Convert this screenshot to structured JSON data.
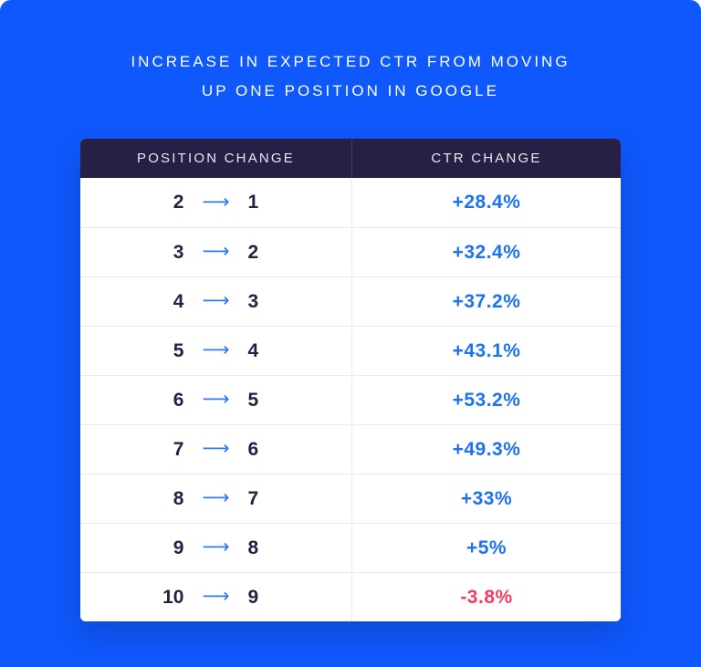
{
  "title": {
    "line1": "INCREASE IN EXPECTED CTR FROM MOVING",
    "line2": "UP ONE POSITION IN GOOGLE"
  },
  "table": {
    "columns": [
      "POSITION CHANGE",
      "CTR CHANGE"
    ],
    "arrow_icon": "⟶",
    "rows": [
      {
        "from": "2",
        "to": "1",
        "ctr": "+28.4%",
        "positive": true
      },
      {
        "from": "3",
        "to": "2",
        "ctr": "+32.4%",
        "positive": true
      },
      {
        "from": "4",
        "to": "3",
        "ctr": "+37.2%",
        "positive": true
      },
      {
        "from": "5",
        "to": "4",
        "ctr": "+43.1%",
        "positive": true
      },
      {
        "from": "6",
        "to": "5",
        "ctr": "+53.2%",
        "positive": true
      },
      {
        "from": "7",
        "to": "6",
        "ctr": "+49.3%",
        "positive": true
      },
      {
        "from": "8",
        "to": "7",
        "ctr": "+33%",
        "positive": true
      },
      {
        "from": "9",
        "to": "8",
        "ctr": "+5%",
        "positive": true
      },
      {
        "from": "10",
        "to": "9",
        "ctr": "-3.8%",
        "positive": false
      }
    ]
  },
  "colors": {
    "background_blue": "#0F58FB",
    "header_background": "#262044",
    "positive_value": "#1C72F1",
    "negative_value": "#F93A60",
    "position_number": "#262046",
    "divider": "#EAEAEF",
    "title_text": "#FFFFFF"
  },
  "chart_data": {
    "type": "table",
    "title": "Increase in expected CTR from moving up one position in Google",
    "columns": [
      "Position change",
      "CTR change"
    ],
    "rows": [
      [
        "2 → 1",
        "+28.4%"
      ],
      [
        "3 → 2",
        "+32.4%"
      ],
      [
        "4 → 3",
        "+37.2%"
      ],
      [
        "5 → 4",
        "+43.1%"
      ],
      [
        "6 → 5",
        "+53.2%"
      ],
      [
        "7 → 6",
        "+49.3%"
      ],
      [
        "8 → 7",
        "+33%"
      ],
      [
        "9 → 8",
        "+5%"
      ],
      [
        "10 → 9",
        "-3.8%"
      ]
    ],
    "ctr_change_values_percent": [
      28.4,
      32.4,
      37.2,
      43.1,
      53.2,
      49.3,
      33,
      5,
      -3.8
    ]
  }
}
